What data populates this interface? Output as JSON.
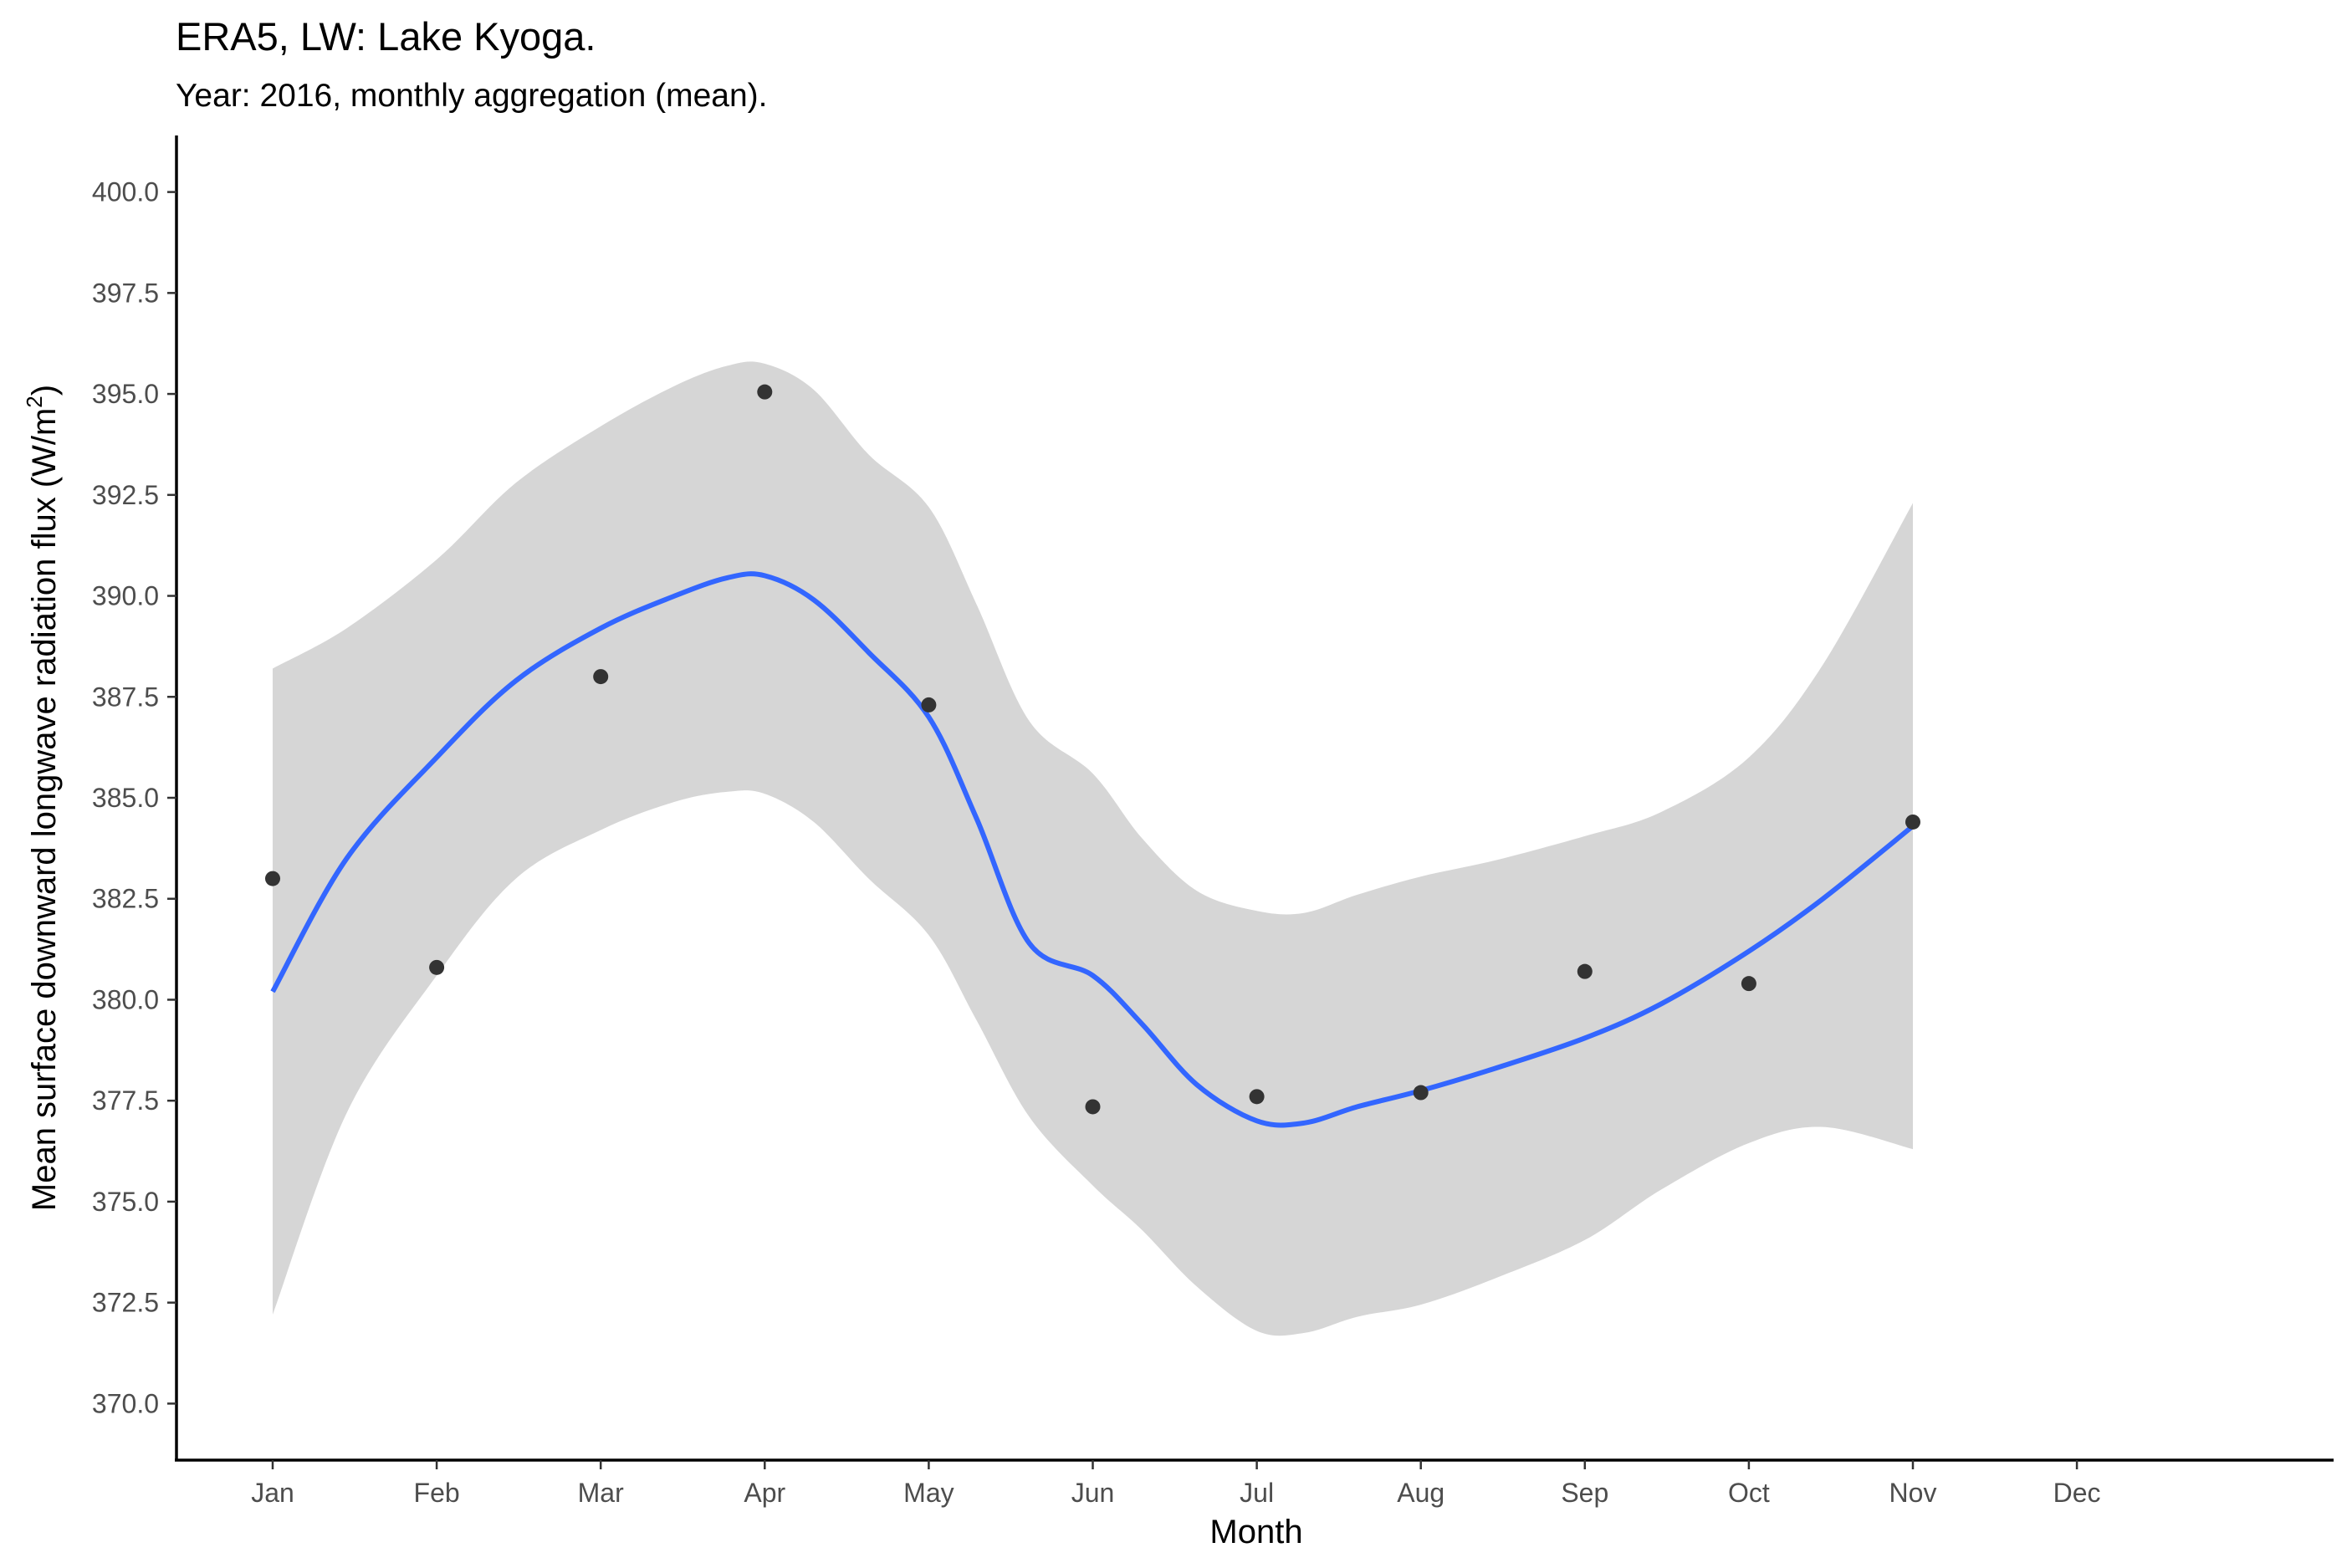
{
  "chart_data": {
    "type": "scatter",
    "title": "ERA5, LW: Lake Kyoga.",
    "subtitle": "Year: 2016, monthly aggregation (mean).",
    "xlabel": "Month",
    "ylabel_text": "Mean surface downward longwave radiation flux (W/m",
    "ylabel_sup": "2",
    "ylabel_close": ")",
    "categories": [
      "Jan",
      "Feb",
      "Mar",
      "Apr",
      "May",
      "Jun",
      "Jul",
      "Aug",
      "Sep",
      "Oct",
      "Nov",
      "Dec"
    ],
    "ylim": [
      368.6,
      401.4
    ],
    "yticks": [
      "370.0",
      "372.5",
      "375.0",
      "377.5",
      "380.0",
      "382.5",
      "385.0",
      "387.5",
      "390.0",
      "392.5",
      "395.0",
      "397.5",
      "400.0"
    ],
    "grid": false,
    "points": {
      "x": [
        "2016-01-01",
        "2016-02-01",
        "2016-03-01",
        "2016-04-01",
        "2016-05-01",
        "2016-06-01",
        "2016-07-01",
        "2016-08-01",
        "2016-09-01",
        "2016-10-01",
        "2016-11-01"
      ],
      "y": [
        383.0,
        380.8,
        388.0,
        395.05,
        387.3,
        377.35,
        377.6,
        377.7,
        380.7,
        380.4,
        384.4
      ],
      "color": "#333333"
    },
    "smooth": {
      "color": "#3366ff",
      "ribbon_color": "#d6d6d6",
      "x": [
        "2016-01-01",
        "2016-01-15",
        "2016-02-01",
        "2016-02-15",
        "2016-03-01",
        "2016-03-15",
        "2016-03-25",
        "2016-04-01",
        "2016-04-10",
        "2016-04-20",
        "2016-05-01",
        "2016-05-10",
        "2016-05-20",
        "2016-06-01",
        "2016-06-10",
        "2016-06-20",
        "2016-07-01",
        "2016-07-10",
        "2016-07-20",
        "2016-08-01",
        "2016-08-15",
        "2016-09-01",
        "2016-09-15",
        "2016-10-01",
        "2016-10-15",
        "2016-11-01"
      ],
      "fit": [
        380.2,
        383.5,
        386.0,
        387.9,
        389.2,
        390.0,
        390.45,
        390.5,
        389.9,
        388.6,
        387.0,
        384.5,
        381.4,
        380.6,
        379.4,
        377.9,
        377.0,
        376.95,
        377.35,
        377.75,
        378.3,
        379.05,
        379.9,
        381.2,
        382.5,
        384.3
      ],
      "ymin": [
        372.2,
        377.2,
        380.6,
        383.0,
        384.2,
        384.9,
        385.15,
        385.1,
        384.4,
        383.0,
        381.6,
        379.5,
        377.1,
        375.4,
        374.3,
        372.9,
        371.8,
        371.75,
        372.15,
        372.45,
        373.1,
        374.05,
        375.3,
        376.45,
        376.85,
        376.3
      ],
      "ymax": [
        388.2,
        389.2,
        390.9,
        392.8,
        394.2,
        395.2,
        395.7,
        395.75,
        395.1,
        393.5,
        392.2,
        389.8,
        386.9,
        385.6,
        384.0,
        382.7,
        382.2,
        382.15,
        382.6,
        383.05,
        383.45,
        384.05,
        384.65,
        386.0,
        388.3,
        392.3
      ]
    }
  }
}
